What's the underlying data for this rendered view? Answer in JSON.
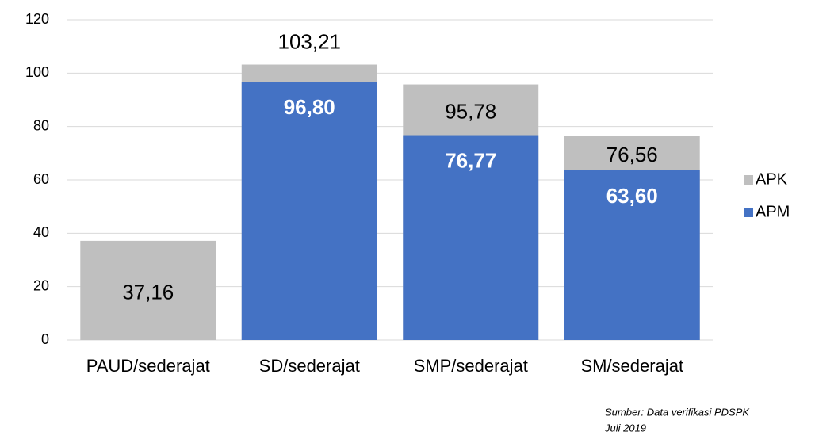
{
  "chart_data": {
    "type": "bar",
    "overlap": true,
    "categories": [
      "PAUD/sederajat",
      "SD/sederajat",
      "SMP/sederajat",
      "SM/sederajat"
    ],
    "series": [
      {
        "name": "APK",
        "color": "#bfbfbf",
        "values": [
          37.16,
          103.21,
          95.78,
          76.56
        ],
        "value_labels": [
          "37,16",
          "103,21",
          "95,78",
          "76,56"
        ]
      },
      {
        "name": "APM",
        "color": "#4472c4",
        "values": [
          null,
          96.8,
          76.77,
          63.6
        ],
        "value_labels": [
          null,
          "96,80",
          "76,77",
          "63,60"
        ]
      }
    ],
    "ylim": [
      0,
      120
    ],
    "yticks": [
      0,
      20,
      40,
      60,
      80,
      100,
      120
    ],
    "grid": true,
    "legend": "right",
    "source": [
      "Sumber:  Data verifikasi PDSPK",
      "Juli 2019"
    ]
  }
}
